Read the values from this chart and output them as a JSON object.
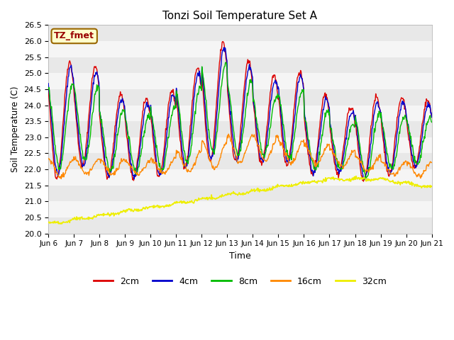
{
  "title": "Tonzi Soil Temperature Set A",
  "xlabel": "Time",
  "ylabel": "Soil Temperature (C)",
  "ylim": [
    20.0,
    26.5
  ],
  "annotation_text": "TZ_fmet",
  "annotation_bg": "#ffffcc",
  "annotation_border": "#996600",
  "legend_entries": [
    "2cm",
    "4cm",
    "8cm",
    "16cm",
    "32cm"
  ],
  "line_colors": [
    "#dd0000",
    "#0000cc",
    "#00bb00",
    "#ff8800",
    "#eeee00"
  ],
  "xtick_labels": [
    "Jun 6",
    "Jun 7",
    "Jun 8",
    "Jun 9",
    "Jun 10",
    "Jun 11",
    "Jun 12",
    "Jun 13",
    "Jun 14",
    "Jun 15",
    "Jun 16",
    "Jun 17",
    "Jun 18",
    "Jun 19",
    "Jun 20",
    "Jun 21"
  ],
  "title_fontsize": 11,
  "bg_color": "#ffffff",
  "stripe_colors": [
    "#e8e8e8",
    "#f5f5f5"
  ]
}
